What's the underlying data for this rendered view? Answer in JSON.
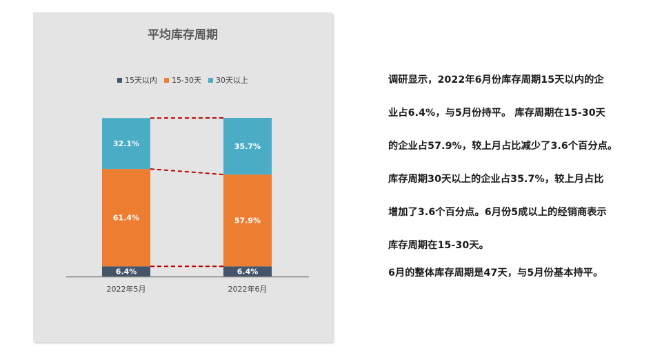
{
  "chart_data": {
    "type": "bar",
    "stacked": true,
    "percent": true,
    "title": "平均库存周期",
    "categories": [
      "2022年5月",
      "2022年6月"
    ],
    "series": [
      {
        "name": "15天以内",
        "values": [
          6.4,
          6.4
        ],
        "labels": [
          "6.4%",
          "6.4%"
        ],
        "color": "#44546a"
      },
      {
        "name": "15-30天",
        "values": [
          61.4,
          57.9
        ],
        "labels": [
          "61.4%",
          "57.9%"
        ],
        "color": "#ed7d31"
      },
      {
        "name": "30天以上",
        "values": [
          32.1,
          35.7
        ],
        "labels": [
          "32.1%",
          "35.7%"
        ],
        "color": "#4bacc6"
      }
    ],
    "ylim": [
      0,
      100
    ],
    "legend_position": "top",
    "grid": false,
    "series_lines": true,
    "series_line_color": "#c00000"
  },
  "commentary": {
    "lines": [
      "调研显示，2022年6月份库存周期15天以内的企",
      "业占6.4%，与5月份持平。 库存周期在15-30天",
      "的企业占57.9%，较上月占比减少了3.6个百分点。",
      "库存周期30天以上的企业占35.7%，较上月占比",
      "增加了3.6个百分点。6月份5成以上的经销商表示",
      "库存周期在15-30天。",
      "6月的整体库存周期是47天，与5月份基本持平。"
    ]
  }
}
